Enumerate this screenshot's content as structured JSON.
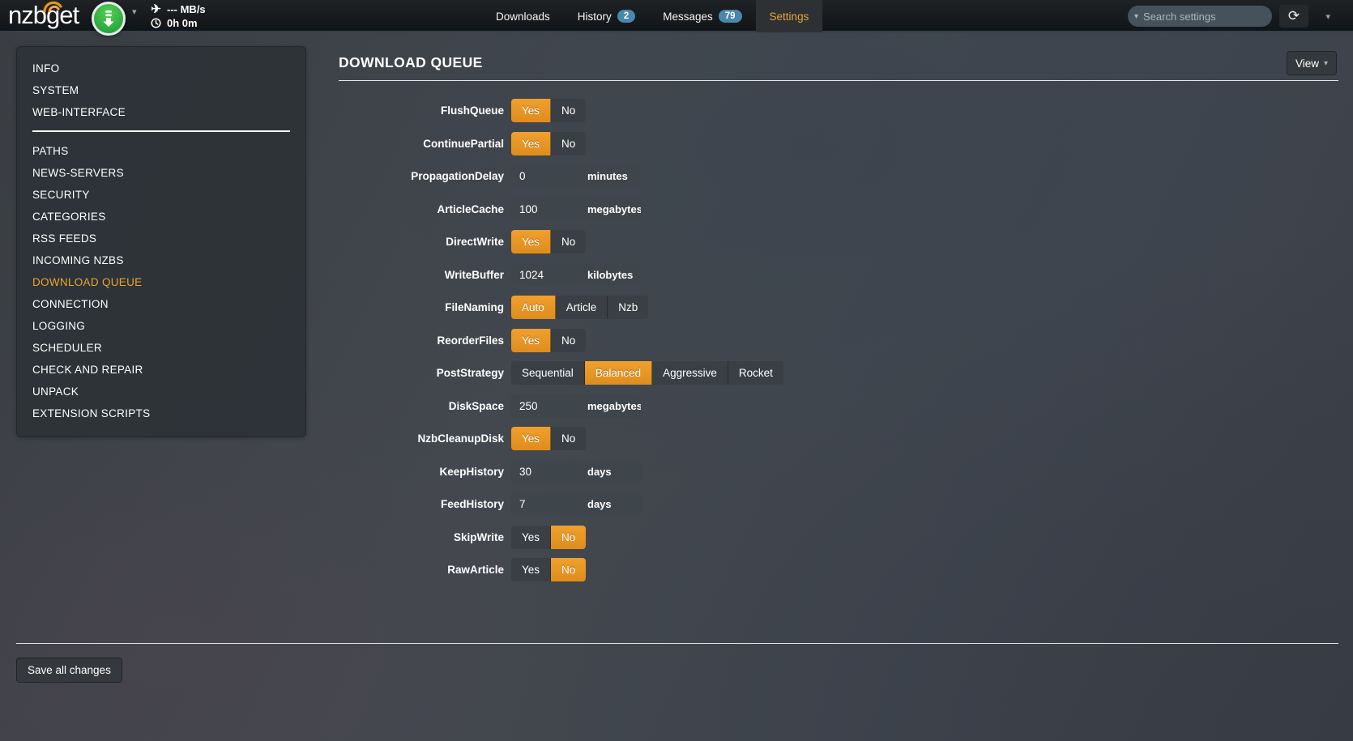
{
  "navbar": {
    "logo": "nzbget",
    "speed": "--- MB/s",
    "time_left": "0h 0m",
    "tabs": [
      {
        "label": "Downloads",
        "badge": null,
        "active": false
      },
      {
        "label": "History",
        "badge": "2",
        "active": false
      },
      {
        "label": "Messages",
        "badge": "79",
        "active": false
      },
      {
        "label": "Settings",
        "badge": null,
        "active": true
      }
    ],
    "search": {
      "placeholder": "Search settings"
    },
    "icons": [
      "download-icon",
      "caret-down-icon",
      "airplane-icon",
      "clock-icon",
      "clear-icon",
      "refresh-icon"
    ]
  },
  "colors": {
    "accent_orange": "#e8941f",
    "badge_blue": "#4a87ad",
    "active_nav_text": "#e8a33d",
    "panel_bg": "#2c3237"
  },
  "sidebar": {
    "items": [
      {
        "label": "INFO",
        "active": false
      },
      {
        "label": "SYSTEM",
        "active": false
      },
      {
        "label": "WEB-INTERFACE",
        "active": false
      },
      {
        "divider": true
      },
      {
        "label": "PATHS",
        "active": false
      },
      {
        "label": "NEWS-SERVERS",
        "active": false
      },
      {
        "label": "SECURITY",
        "active": false
      },
      {
        "label": "CATEGORIES",
        "active": false
      },
      {
        "label": "RSS FEEDS",
        "active": false
      },
      {
        "label": "INCOMING NZBS",
        "active": false
      },
      {
        "label": "DOWNLOAD QUEUE",
        "active": true
      },
      {
        "label": "CONNECTION",
        "active": false
      },
      {
        "label": "LOGGING",
        "active": false
      },
      {
        "label": "SCHEDULER",
        "active": false
      },
      {
        "label": "CHECK AND REPAIR",
        "active": false
      },
      {
        "label": "UNPACK",
        "active": false
      },
      {
        "label": "EXTENSION SCRIPTS",
        "active": false
      }
    ]
  },
  "content": {
    "title": "DOWNLOAD QUEUE",
    "view_button": "View",
    "rows": [
      {
        "label": "FlushQueue",
        "type": "toggle",
        "options": [
          "Yes",
          "No"
        ],
        "selected": "Yes"
      },
      {
        "label": "ContinuePartial",
        "type": "toggle",
        "options": [
          "Yes",
          "No"
        ],
        "selected": "Yes"
      },
      {
        "label": "PropagationDelay",
        "type": "input",
        "value": "0",
        "unit": "minutes"
      },
      {
        "label": "ArticleCache",
        "type": "input",
        "value": "100",
        "unit": "megabytes"
      },
      {
        "label": "DirectWrite",
        "type": "toggle",
        "options": [
          "Yes",
          "No"
        ],
        "selected": "Yes"
      },
      {
        "label": "WriteBuffer",
        "type": "input",
        "value": "1024",
        "unit": "kilobytes"
      },
      {
        "label": "FileNaming",
        "type": "toggle",
        "options": [
          "Auto",
          "Article",
          "Nzb"
        ],
        "selected": "Auto"
      },
      {
        "label": "ReorderFiles",
        "type": "toggle",
        "options": [
          "Yes",
          "No"
        ],
        "selected": "Yes"
      },
      {
        "label": "PostStrategy",
        "type": "toggle",
        "options": [
          "Sequential",
          "Balanced",
          "Aggressive",
          "Rocket"
        ],
        "selected": "Balanced"
      },
      {
        "label": "DiskSpace",
        "type": "input",
        "value": "250",
        "unit": "megabytes"
      },
      {
        "label": "NzbCleanupDisk",
        "type": "toggle",
        "options": [
          "Yes",
          "No"
        ],
        "selected": "Yes"
      },
      {
        "label": "KeepHistory",
        "type": "input",
        "value": "30",
        "unit": "days"
      },
      {
        "label": "FeedHistory",
        "type": "input",
        "value": "7",
        "unit": "days"
      },
      {
        "label": "SkipWrite",
        "type": "toggle",
        "options": [
          "Yes",
          "No"
        ],
        "selected": "No"
      },
      {
        "label": "RawArticle",
        "type": "toggle",
        "options": [
          "Yes",
          "No"
        ],
        "selected": "No"
      }
    ],
    "save_button": "Save all changes"
  }
}
